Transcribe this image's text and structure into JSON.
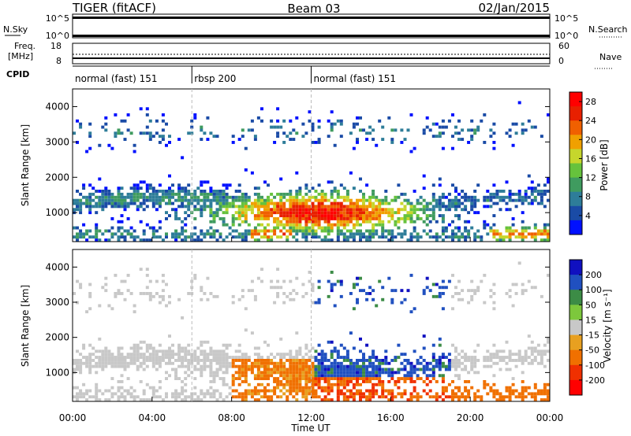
{
  "header": {
    "radar": "TIGER (fitACF)",
    "beam": "Beam 03",
    "date": "02/Jan/2015"
  },
  "top_panels": {
    "nsky_label": "N.Sky",
    "nsearch_label": "N.Search",
    "noise_ticks": [
      "10^5",
      "10^0"
    ],
    "freq_label_1": "Freq.",
    "freq_label_2": "[MHz]",
    "freq_ticks": [
      "18",
      "8"
    ],
    "nave_label": "Nave",
    "nave_ticks": [
      "60",
      "0"
    ],
    "cpid_label": "CPID"
  },
  "cpid_segments": [
    {
      "label": "normal (fast) 151",
      "start_hour": 0,
      "end_hour": 6
    },
    {
      "label": "rbsp 200",
      "start_hour": 6,
      "end_hour": 12
    },
    {
      "label": "normal (fast) 151",
      "start_hour": 12,
      "end_hour": 24
    }
  ],
  "chart_data": [
    {
      "type": "heatmap",
      "title": "",
      "xlabel": "Time UT",
      "ylabel": "Slant Range [km]",
      "xlim": [
        0,
        24
      ],
      "ylim": [
        180,
        4500
      ],
      "x_ticks": [
        "00:00",
        "04:00",
        "08:00",
        "12:00",
        "16:00",
        "20:00",
        "00:00"
      ],
      "y_ticks": [
        "1000",
        "2000",
        "3000",
        "4000"
      ],
      "colorbar": {
        "label": "Power [dB]",
        "ticks": [
          "4",
          "8",
          "12",
          "16",
          "20",
          "24",
          "28"
        ],
        "range": [
          0,
          30
        ],
        "colors": [
          "#0010ff",
          "#1a4ba6",
          "#2e7d99",
          "#3f9b5f",
          "#66c23c",
          "#c6d62c",
          "#f0a000",
          "#f06000",
          "#e82000",
          "#ff0000"
        ]
      },
      "features": [
        {
          "name": "near-range band",
          "start_hour": 0,
          "end_hour": 6,
          "range_km": [
            1100,
            1700
          ],
          "power_db": 8
        },
        {
          "name": "mid-day strong echoes",
          "start_hour": 8,
          "end_hour": 18,
          "range_km": [
            500,
            1500
          ],
          "power_db": 24
        },
        {
          "name": "far-range sparse scatter",
          "start_hour": 1,
          "end_hour": 23,
          "range_km": [
            3000,
            3600
          ],
          "power_db": 6
        }
      ]
    },
    {
      "type": "heatmap",
      "title": "",
      "xlabel": "Time UT",
      "ylabel": "Slant Range [km]",
      "xlim": [
        0,
        24
      ],
      "ylim": [
        180,
        4500
      ],
      "x_ticks": [
        "00:00",
        "04:00",
        "08:00",
        "12:00",
        "16:00",
        "20:00",
        "00:00"
      ],
      "y_ticks": [
        "1000",
        "2000",
        "3000",
        "4000"
      ],
      "colorbar": {
        "label": "Velocity [m s⁻¹]",
        "ticks": [
          "200",
          "100",
          "50",
          "15",
          "-15",
          "-50",
          "-100",
          "-200"
        ],
        "range": [
          -250,
          250
        ],
        "colors": [
          "#1010c0",
          "#2050c0",
          "#3c8c46",
          "#7dc83c",
          "#c8c8c8",
          "#e8a020",
          "#f07000",
          "#f03000",
          "#ff0000"
        ]
      },
      "features": [
        {
          "name": "ground scatter band",
          "start_hour": 0,
          "end_hour": 12,
          "range_km": [
            900,
            1700
          ],
          "velocity": 0
        },
        {
          "name": "negative velocity region",
          "start_hour": 8,
          "end_hour": 12,
          "range_km": [
            500,
            1500
          ],
          "velocity": -60
        },
        {
          "name": "positive velocity region",
          "start_hour": 12,
          "end_hour": 19,
          "range_km": [
            1000,
            2200
          ],
          "velocity": 150
        }
      ]
    }
  ]
}
